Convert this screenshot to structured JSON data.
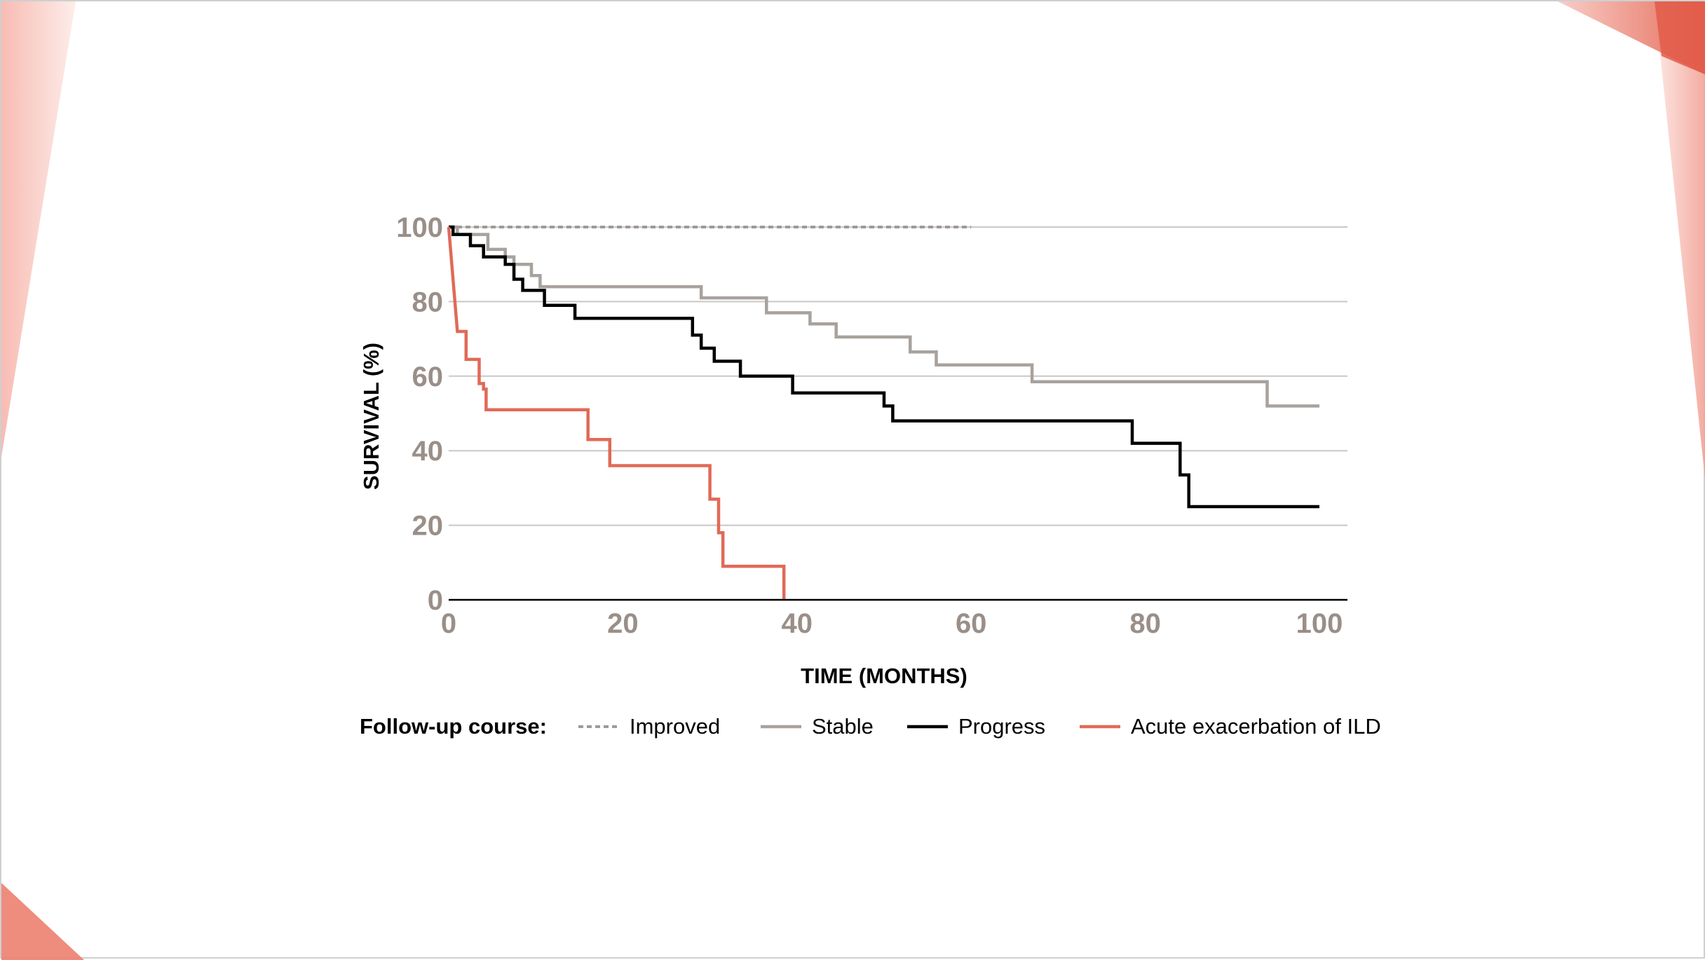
{
  "chart_data": {
    "type": "line",
    "title": "",
    "xlabel": "TIME (MONTHS)",
    "ylabel": "SURVIVAL (%)",
    "xlim": [
      0,
      100
    ],
    "ylim": [
      0,
      100
    ],
    "x_ticks": [
      0,
      20,
      40,
      60,
      80,
      100
    ],
    "y_ticks": [
      0,
      20,
      40,
      60,
      80,
      100
    ],
    "grid": true,
    "legend_title": "Follow-up course:",
    "legend_position": "bottom",
    "series": [
      {
        "name": "Improved",
        "color": "#a09a96",
        "style": "dashed",
        "points": [
          [
            0,
            100
          ],
          [
            60,
            100
          ]
        ]
      },
      {
        "name": "Stable",
        "color": "#a8a29e",
        "style": "solid",
        "points": [
          [
            0,
            100
          ],
          [
            1,
            100
          ],
          [
            1,
            98
          ],
          [
            4.5,
            98
          ],
          [
            4.5,
            94
          ],
          [
            6.5,
            94
          ],
          [
            6.5,
            92
          ],
          [
            7.5,
            92
          ],
          [
            7.5,
            90
          ],
          [
            9.5,
            90
          ],
          [
            9.5,
            87
          ],
          [
            10.5,
            87
          ],
          [
            10.5,
            84
          ],
          [
            29,
            84
          ],
          [
            29,
            81
          ],
          [
            36.5,
            81
          ],
          [
            36.5,
            77
          ],
          [
            41.5,
            77
          ],
          [
            41.5,
            74
          ],
          [
            44.5,
            74
          ],
          [
            44.5,
            70.5
          ],
          [
            53,
            70.5
          ],
          [
            53,
            66.5
          ],
          [
            56,
            66.5
          ],
          [
            56,
            63
          ],
          [
            67,
            63
          ],
          [
            67,
            58.5
          ],
          [
            94,
            58.5
          ],
          [
            94,
            52
          ],
          [
            100,
            52
          ]
        ]
      },
      {
        "name": "Progress",
        "color": "#000000",
        "style": "solid",
        "points": [
          [
            0,
            100
          ],
          [
            0.5,
            100
          ],
          [
            0.5,
            98
          ],
          [
            2.5,
            98
          ],
          [
            2.5,
            95
          ],
          [
            4,
            95
          ],
          [
            4,
            92
          ],
          [
            6.5,
            92
          ],
          [
            6.5,
            90
          ],
          [
            7.5,
            90
          ],
          [
            7.5,
            86
          ],
          [
            8.5,
            86
          ],
          [
            8.5,
            83
          ],
          [
            11,
            83
          ],
          [
            11,
            79
          ],
          [
            14.5,
            79
          ],
          [
            14.5,
            75.5
          ],
          [
            28,
            75.5
          ],
          [
            28,
            71
          ],
          [
            29,
            71
          ],
          [
            29,
            67.5
          ],
          [
            30.5,
            67.5
          ],
          [
            30.5,
            64
          ],
          [
            33.5,
            64
          ],
          [
            33.5,
            60
          ],
          [
            39.5,
            60
          ],
          [
            39.5,
            55.5
          ],
          [
            50,
            55.5
          ],
          [
            50,
            52
          ],
          [
            51,
            52
          ],
          [
            51,
            48
          ],
          [
            78.5,
            48
          ],
          [
            78.5,
            42
          ],
          [
            84,
            42
          ],
          [
            84,
            33.5
          ],
          [
            85,
            33.5
          ],
          [
            85,
            25
          ],
          [
            100,
            25
          ]
        ]
      },
      {
        "name": "Acute exacerbation of ILD",
        "color": "#e06a57",
        "style": "solid",
        "points": [
          [
            0,
            100
          ],
          [
            1,
            72
          ],
          [
            2,
            72
          ],
          [
            2,
            64.5
          ],
          [
            3.5,
            64.5
          ],
          [
            3.5,
            58
          ],
          [
            4,
            58
          ],
          [
            4,
            56.5
          ],
          [
            4.3,
            56.5
          ],
          [
            4.3,
            51
          ],
          [
            16,
            51
          ],
          [
            16,
            43
          ],
          [
            18.5,
            43
          ],
          [
            18.5,
            36
          ],
          [
            30,
            36
          ],
          [
            30,
            27
          ],
          [
            31,
            27
          ],
          [
            31,
            18
          ],
          [
            31.5,
            18
          ],
          [
            31.5,
            9
          ],
          [
            38.5,
            9
          ],
          [
            38.5,
            0
          ]
        ]
      }
    ]
  }
}
